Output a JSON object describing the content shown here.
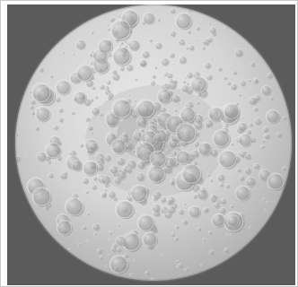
{
  "image": {
    "subject": "moon-south-pole-view",
    "colors": {
      "background": "#5b5b5b",
      "surface_light": "#e4e4e4",
      "surface_mid": "#bdbdbd",
      "surface_dark": "#8f8f8f",
      "frame_border": "#c9c9c9"
    }
  }
}
